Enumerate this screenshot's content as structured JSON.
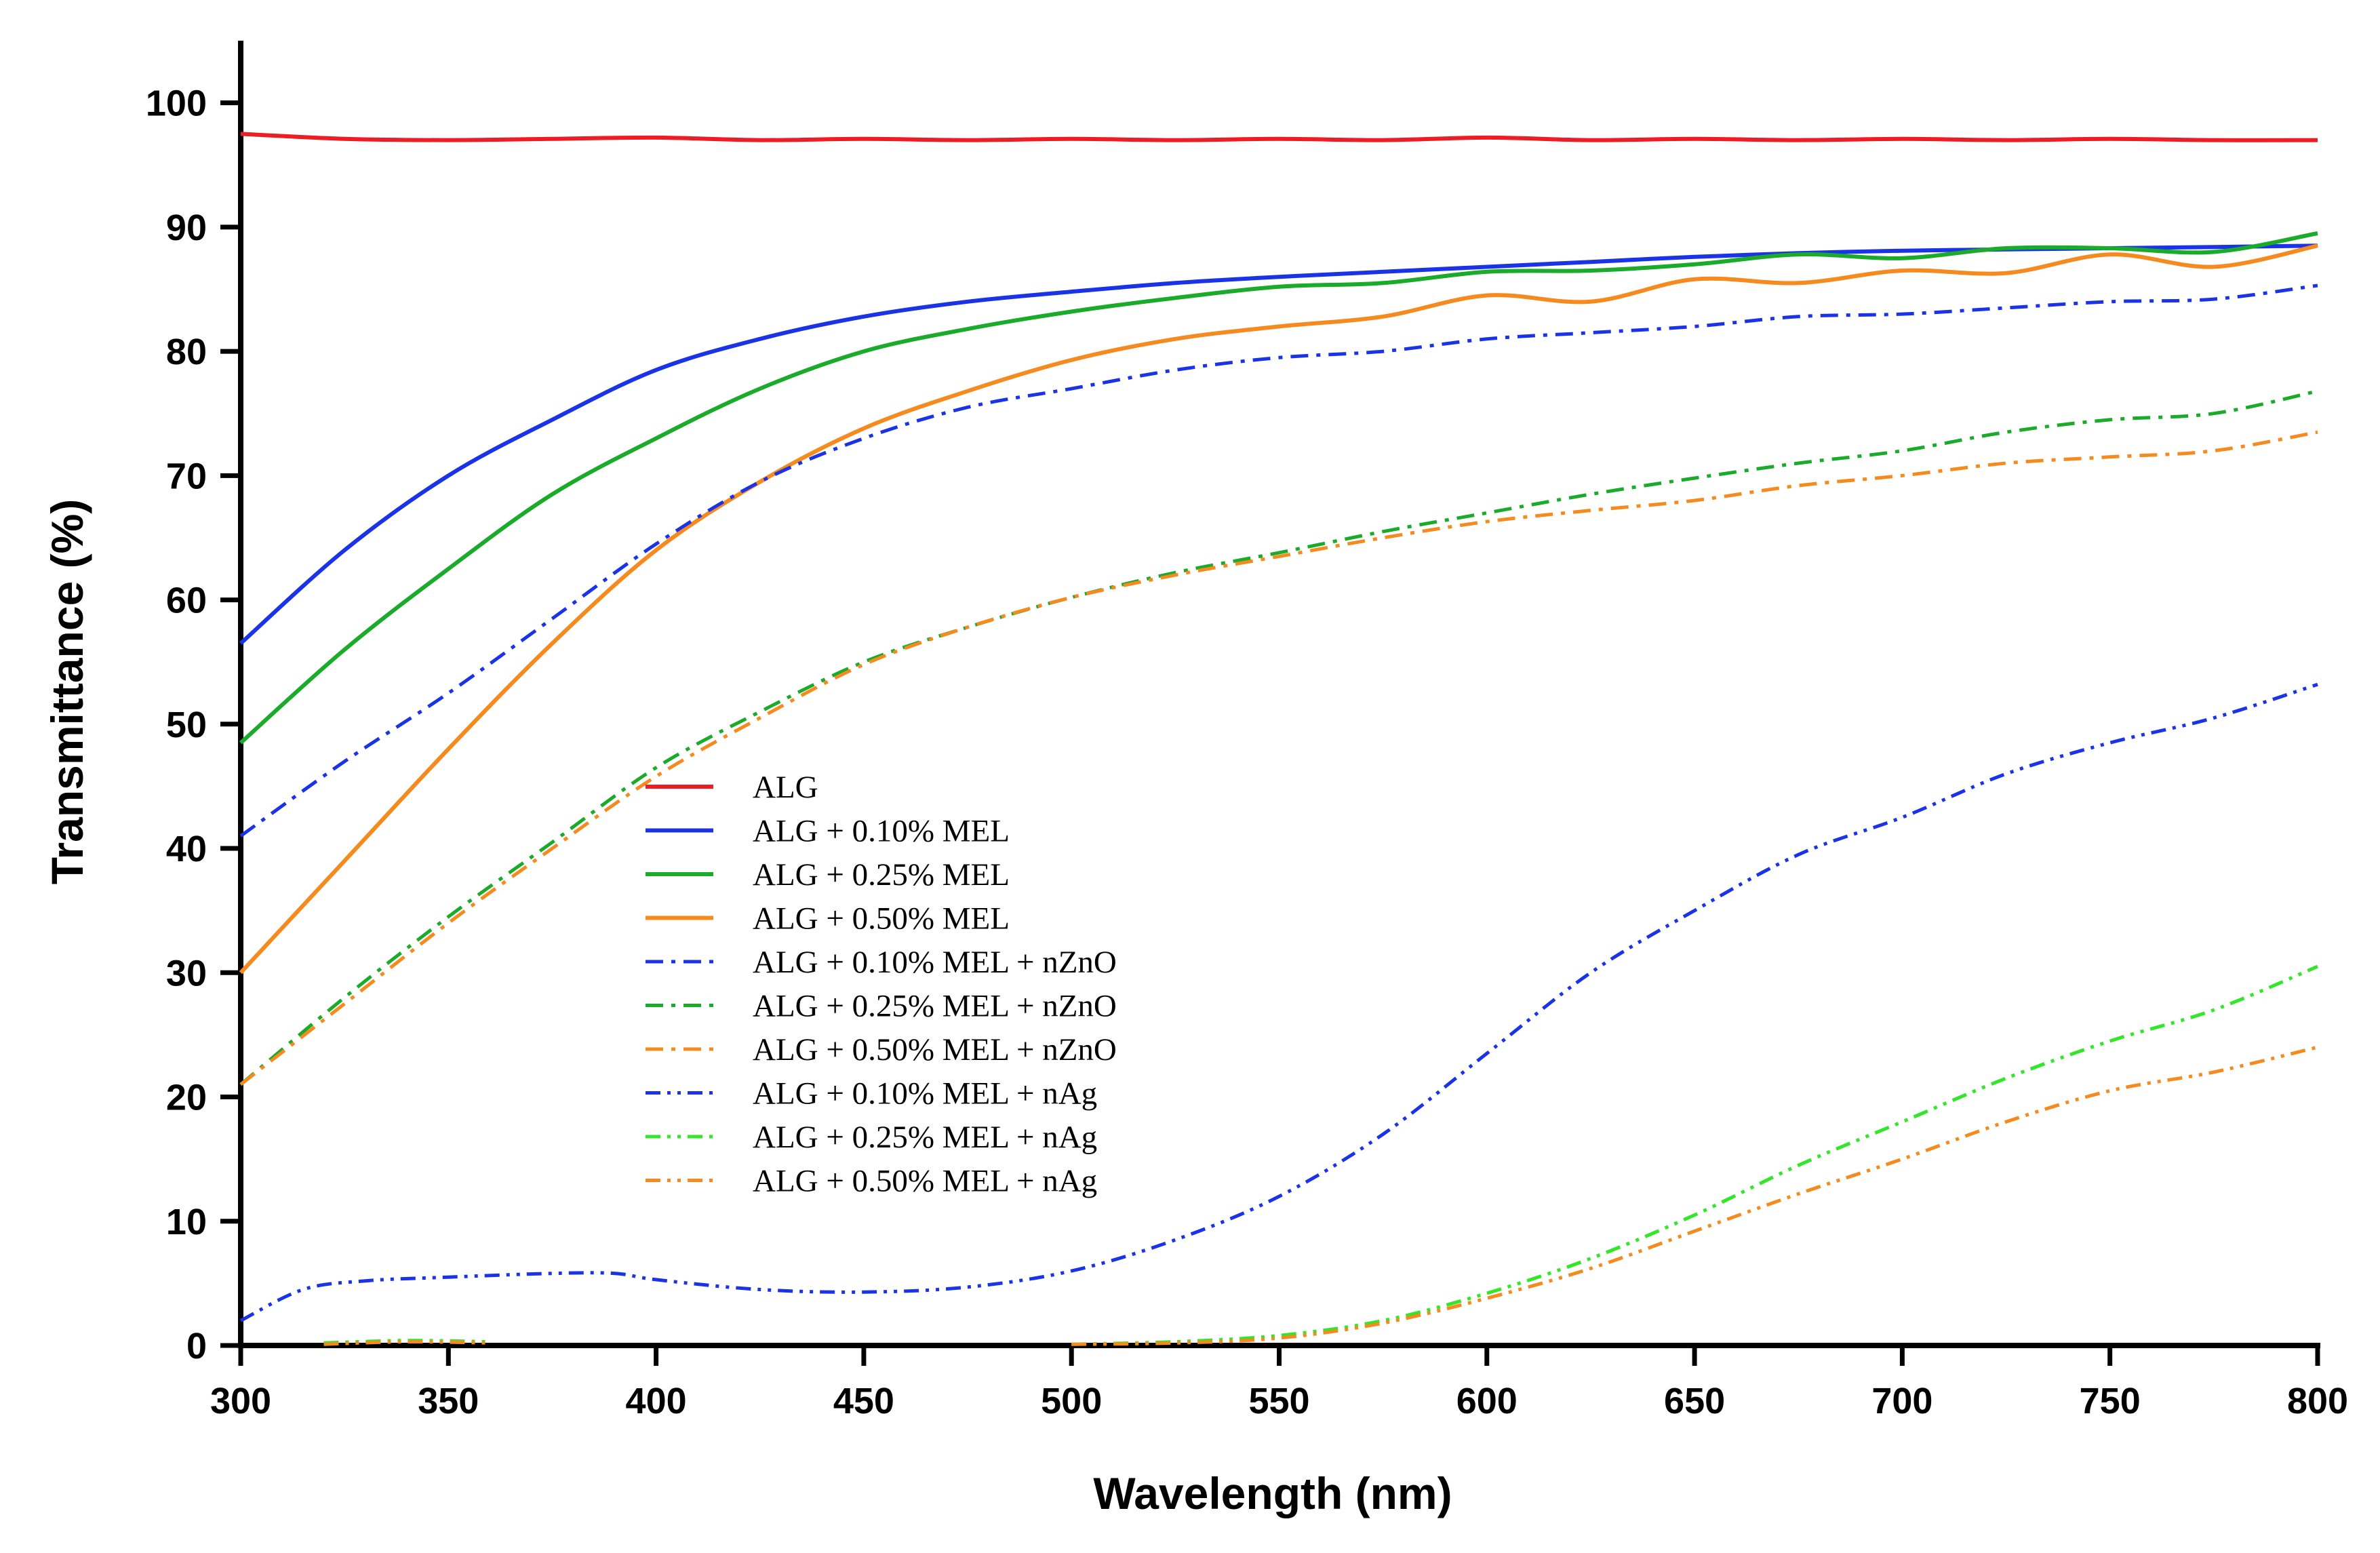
{
  "chart_data": {
    "type": "line",
    "title": "",
    "xlabel": "Wavelength (nm)",
    "ylabel": "Transmittance (%)",
    "xlim": [
      300,
      800
    ],
    "ylim": [
      0,
      105
    ],
    "grid": false,
    "legend_position": "center",
    "x_ticks": [
      300,
      350,
      400,
      450,
      500,
      550,
      600,
      650,
      700,
      750,
      800
    ],
    "x_tick_labels": [
      "300",
      "350",
      "400",
      "450",
      "500",
      "550",
      "600",
      "650",
      "700",
      "750",
      "800"
    ],
    "y_ticks": [
      0,
      10,
      20,
      30,
      40,
      50,
      60,
      70,
      80,
      90,
      100
    ],
    "y_tick_labels": [
      "0",
      "10",
      "20",
      "30",
      "40",
      "50",
      "60",
      "70",
      "80",
      "90",
      "100"
    ],
    "series": [
      {
        "name": "ALG",
        "color": "#ee1c25",
        "style": "solid",
        "x": [
          300,
          325,
          350,
          375,
          400,
          425,
          450,
          475,
          500,
          525,
          550,
          575,
          600,
          625,
          650,
          675,
          700,
          725,
          750,
          775,
          800
        ],
        "y": [
          97.5,
          97.1,
          97.0,
          97.1,
          97.2,
          97.0,
          97.1,
          97.0,
          97.1,
          97.0,
          97.1,
          97.0,
          97.2,
          97.0,
          97.1,
          97.0,
          97.1,
          97.0,
          97.1,
          97.0,
          97.0
        ]
      },
      {
        "name": "ALG + 0.10% MEL",
        "color": "#1a33e6",
        "style": "solid",
        "x": [
          300,
          325,
          350,
          375,
          400,
          425,
          450,
          475,
          500,
          525,
          550,
          575,
          600,
          625,
          650,
          675,
          700,
          725,
          750,
          775,
          800
        ],
        "y": [
          56.5,
          64.0,
          70.0,
          74.5,
          78.5,
          81.0,
          82.8,
          84.0,
          84.8,
          85.5,
          86.0,
          86.4,
          86.8,
          87.2,
          87.6,
          87.9,
          88.1,
          88.2,
          88.3,
          88.4,
          88.5
        ]
      },
      {
        "name": "ALG + 0.25% MEL",
        "color": "#1aab2a",
        "style": "solid",
        "x": [
          300,
          325,
          350,
          375,
          400,
          425,
          450,
          475,
          500,
          525,
          550,
          575,
          600,
          625,
          650,
          675,
          700,
          725,
          750,
          775,
          800
        ],
        "y": [
          48.5,
          56.0,
          62.5,
          68.5,
          73.0,
          77.0,
          80.0,
          81.8,
          83.2,
          84.3,
          85.2,
          85.5,
          86.4,
          86.5,
          87.0,
          87.8,
          87.5,
          88.3,
          88.3,
          88.0,
          89.5
        ]
      },
      {
        "name": "ALG + 0.50% MEL",
        "color": "#f58a1f",
        "style": "solid",
        "x": [
          300,
          325,
          350,
          375,
          400,
          425,
          450,
          475,
          500,
          525,
          550,
          575,
          600,
          625,
          650,
          675,
          700,
          725,
          750,
          775,
          800
        ],
        "y": [
          30.0,
          39.0,
          48.0,
          56.5,
          64.0,
          69.5,
          73.8,
          76.8,
          79.3,
          81.0,
          82.0,
          82.8,
          84.5,
          84.0,
          85.8,
          85.5,
          86.5,
          86.3,
          87.8,
          86.8,
          88.5
        ]
      },
      {
        "name": "ALG + 0.10% MEL + nZnO",
        "color": "#1a33e6",
        "style": "dashdot",
        "x": [
          300,
          325,
          350,
          375,
          400,
          425,
          450,
          475,
          500,
          525,
          550,
          575,
          600,
          625,
          650,
          675,
          700,
          725,
          750,
          775,
          800
        ],
        "y": [
          41.0,
          47.0,
          52.5,
          58.5,
          64.5,
          69.5,
          73.0,
          75.5,
          77.0,
          78.5,
          79.5,
          80.0,
          81.0,
          81.5,
          82.0,
          82.8,
          83.0,
          83.5,
          84.0,
          84.2,
          85.3
        ]
      },
      {
        "name": "ALG + 0.25% MEL + nZnO",
        "color": "#1aab2a",
        "style": "dashdot",
        "x": [
          300,
          325,
          350,
          375,
          400,
          425,
          450,
          475,
          500,
          525,
          550,
          575,
          600,
          625,
          650,
          675,
          700,
          725,
          750,
          775,
          800
        ],
        "y": [
          21.0,
          28.0,
          34.5,
          40.5,
          46.5,
          51.0,
          55.0,
          57.8,
          60.2,
          62.2,
          63.8,
          65.5,
          67.0,
          68.5,
          69.8,
          71.0,
          72.0,
          73.5,
          74.5,
          75.0,
          76.8
        ]
      },
      {
        "name": "ALG + 0.50% MEL + nZnO",
        "color": "#f58a1f",
        "style": "dashdot",
        "x": [
          300,
          325,
          350,
          375,
          400,
          425,
          450,
          475,
          500,
          525,
          550,
          575,
          600,
          625,
          650,
          675,
          700,
          725,
          750,
          775,
          800
        ],
        "y": [
          21.0,
          27.5,
          34.0,
          40.0,
          45.8,
          50.5,
          54.8,
          57.8,
          60.2,
          62.0,
          63.5,
          65.0,
          66.3,
          67.2,
          68.0,
          69.2,
          70.0,
          71.0,
          71.5,
          72.0,
          73.5
        ]
      },
      {
        "name": "ALG + 0.10% MEL + nAg",
        "color": "#1a33e6",
        "style": "dashdotdot",
        "x": [
          300,
          315,
          330,
          350,
          375,
          390,
          400,
          425,
          450,
          475,
          500,
          525,
          550,
          575,
          600,
          625,
          650,
          675,
          700,
          725,
          750,
          775,
          800
        ],
        "y": [
          2.0,
          4.5,
          5.2,
          5.5,
          5.8,
          5.8,
          5.3,
          4.5,
          4.3,
          4.7,
          6.0,
          8.5,
          12.0,
          17.0,
          23.5,
          30.0,
          35.0,
          39.5,
          42.5,
          46.0,
          48.5,
          50.5,
          53.2
        ]
      },
      {
        "name": "ALG + 0.25% MEL + nAg",
        "color": "#33e62a",
        "style": "dashdotdot",
        "x": [
          320,
          340,
          360,
          500,
          525,
          550,
          575,
          600,
          625,
          650,
          675,
          700,
          725,
          750,
          775,
          800
        ],
        "y": [
          0.2,
          0.4,
          0.3,
          0.1,
          0.3,
          0.8,
          2.0,
          4.2,
          7.0,
          10.5,
          14.5,
          18.0,
          21.5,
          24.5,
          27.0,
          30.5
        ]
      },
      {
        "name": "ALG + 0.50% MEL + nAg",
        "color": "#f58a1f",
        "style": "dashdotdot",
        "x": [
          320,
          340,
          360,
          500,
          525,
          550,
          575,
          600,
          625,
          650,
          675,
          700,
          725,
          750,
          775,
          800
        ],
        "y": [
          0.1,
          0.3,
          0.2,
          0.1,
          0.2,
          0.6,
          1.8,
          3.8,
          6.2,
          9.2,
          12.2,
          15.0,
          18.0,
          20.5,
          22.0,
          24.0
        ]
      }
    ]
  }
}
